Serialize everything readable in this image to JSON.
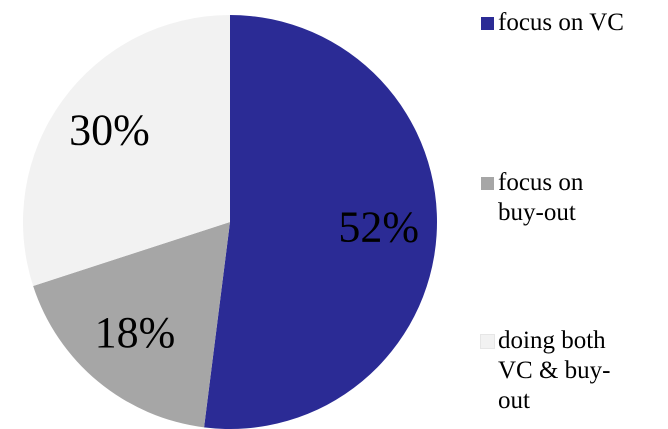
{
  "chart_data": {
    "type": "pie",
    "categories": [
      "focus on VC",
      "focus on buy-out",
      "doing both VC & buy-out"
    ],
    "values": [
      52,
      18,
      30
    ],
    "value_labels": [
      "52%",
      "18%",
      "30%"
    ],
    "colors": [
      "#2b2b95",
      "#a6a6a6",
      "#f2f2f2"
    ],
    "legend": "right"
  }
}
